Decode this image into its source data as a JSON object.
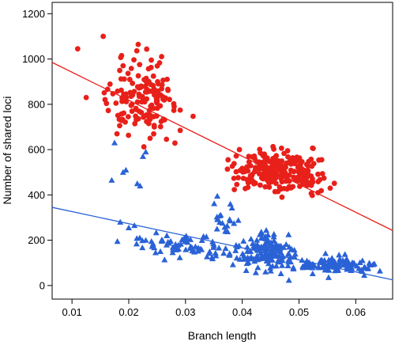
{
  "chart_data": {
    "type": "scatter",
    "title": "",
    "xlabel": "Branch length",
    "ylabel": "Number of shared loci",
    "xlim": [
      0.0065,
      0.0665
    ],
    "ylim": [
      -60,
      1250
    ],
    "xticks": [
      0.01,
      0.02,
      0.03,
      0.04,
      0.05,
      0.06
    ],
    "xtick_labels": [
      "0.01",
      "0.02",
      "0.03",
      "0.04",
      "0.05",
      "0.06"
    ],
    "yticks": [
      0,
      200,
      400,
      600,
      800,
      1000,
      1200
    ],
    "ytick_labels": [
      "0",
      "200",
      "400",
      "600",
      "800",
      "1000",
      "1200"
    ],
    "grid": false,
    "legend": "none",
    "series": [
      {
        "marker": "circle",
        "color": "#e8201a",
        "fit_line": {
          "x0": 0.0065,
          "y0": 985,
          "x1": 0.0665,
          "y1": 243
        },
        "clusters": [
          {
            "x_center": 0.0225,
            "x_sd": 0.0032,
            "y_center": 830,
            "y_sd": 85,
            "n": 150
          },
          {
            "x_center": 0.046,
            "x_sd": 0.004,
            "y_center": 505,
            "y_sd": 42,
            "n": 240
          }
        ],
        "points": [
          {
            "x": 0.011,
            "y": 1045
          },
          {
            "x": 0.0155,
            "y": 1100
          },
          {
            "x": 0.0125,
            "y": 830
          },
          {
            "x": 0.019,
            "y": 970
          },
          {
            "x": 0.028,
            "y": 790
          },
          {
            "x": 0.0245,
            "y": 700
          },
          {
            "x": 0.0395,
            "y": 600
          },
          {
            "x": 0.0525,
            "y": 605
          },
          {
            "x": 0.054,
            "y": 555
          },
          {
            "x": 0.047,
            "y": 390
          },
          {
            "x": 0.0555,
            "y": 430
          },
          {
            "x": 0.0375,
            "y": 555
          }
        ]
      },
      {
        "marker": "triangle",
        "color": "#2a62d6",
        "fit_line": {
          "x0": 0.0065,
          "y0": 345,
          "x1": 0.0665,
          "y1": 25
        },
        "clusters": [
          {
            "x_center": 0.03,
            "x_sd": 0.005,
            "y_center": 175,
            "y_sd": 25,
            "n": 70
          },
          {
            "x_center": 0.0445,
            "x_sd": 0.0025,
            "y_center": 150,
            "y_sd": 40,
            "n": 150
          },
          {
            "x_center": 0.056,
            "x_sd": 0.0035,
            "y_center": 90,
            "y_sd": 18,
            "n": 120
          },
          {
            "x_center": 0.0365,
            "x_sd": 0.0015,
            "y_center": 300,
            "y_sd": 45,
            "n": 18
          }
        ],
        "points": [
          {
            "x": 0.0175,
            "y": 630
          },
          {
            "x": 0.019,
            "y": 500
          },
          {
            "x": 0.0195,
            "y": 510
          },
          {
            "x": 0.017,
            "y": 465
          },
          {
            "x": 0.0215,
            "y": 450
          },
          {
            "x": 0.022,
            "y": 440
          },
          {
            "x": 0.0225,
            "y": 570
          },
          {
            "x": 0.023,
            "y": 590
          },
          {
            "x": 0.018,
            "y": 195
          },
          {
            "x": 0.0185,
            "y": 280
          },
          {
            "x": 0.021,
            "y": 265
          },
          {
            "x": 0.02,
            "y": 255
          },
          {
            "x": 0.023,
            "y": 200
          },
          {
            "x": 0.024,
            "y": 195
          },
          {
            "x": 0.0615,
            "y": 45
          }
        ]
      }
    ]
  }
}
